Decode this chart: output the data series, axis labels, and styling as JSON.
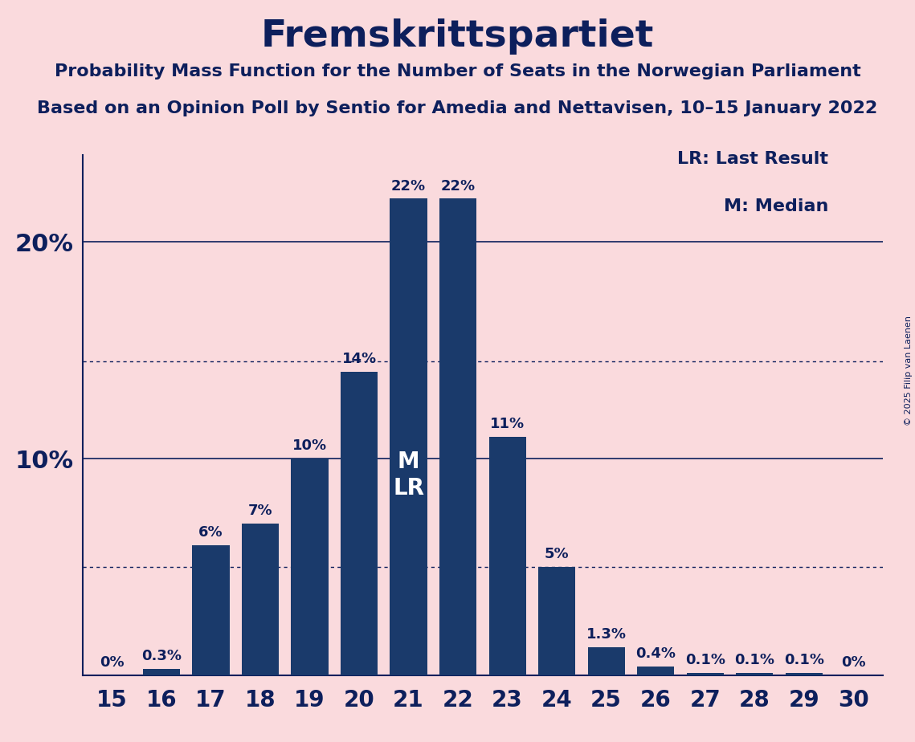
{
  "title": "Fremskrittspartiet",
  "subtitle1": "Probability Mass Function for the Number of Seats in the Norwegian Parliament",
  "subtitle2": "Based on an Opinion Poll by Sentio for Amedia and Nettavisen, 10–15 January 2022",
  "copyright": "© 2025 Filip van Laenen",
  "legend_lr": "LR: Last Result",
  "legend_m": "M: Median",
  "seats": [
    15,
    16,
    17,
    18,
    19,
    20,
    21,
    22,
    23,
    24,
    25,
    26,
    27,
    28,
    29,
    30
  ],
  "probabilities": [
    0.0,
    0.3,
    6.0,
    7.0,
    10.0,
    14.0,
    22.0,
    22.0,
    11.0,
    5.0,
    1.3,
    0.4,
    0.1,
    0.1,
    0.1,
    0.0
  ],
  "labels": [
    "0%",
    "0.3%",
    "6%",
    "7%",
    "10%",
    "14%",
    "22%",
    "22%",
    "11%",
    "5%",
    "1.3%",
    "0.4%",
    "0.1%",
    "0.1%",
    "0.1%",
    "0%"
  ],
  "bar_color": "#1a3a6b",
  "background_color": "#fadadd",
  "text_color": "#0d1f5c",
  "median_seat": 21,
  "last_result_seat": 21,
  "ylim": [
    0,
    25
  ],
  "dotted_lines": [
    5.0,
    14.5
  ],
  "solid_lines": [
    10.0,
    20.0
  ],
  "bar_width": 0.75,
  "label_fontsize": 13,
  "tick_fontsize": 20,
  "ytick_fontsize": 22,
  "title_fontsize": 34,
  "subtitle_fontsize": 16,
  "legend_fontsize": 16,
  "mlr_fontsize": 20
}
